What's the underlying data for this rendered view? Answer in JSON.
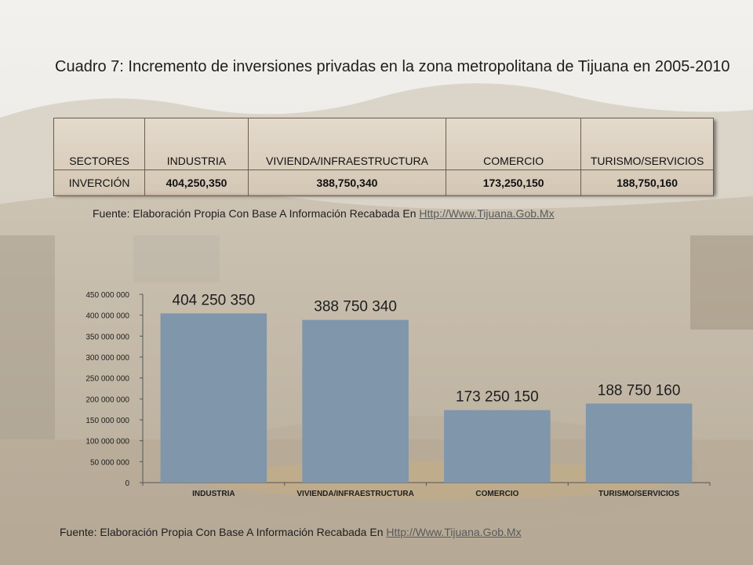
{
  "title": "Cuadro 7: Incremento de inversiones privadas en la zona metropolitana de Tijuana en 2005-2010",
  "table": {
    "headers": [
      "SECTORES",
      "INDUSTRIA",
      "VIVIENDA/INFRAESTRUCTURA",
      "COMERCIO",
      "TURISMO/SERVICIOS"
    ],
    "row_label": "INVERCIÓN",
    "values": [
      "404,250,350",
      "388,750,340",
      "173,250,150",
      "188,750,160"
    ]
  },
  "source": {
    "text": "Fuente: Elaboración Propia  Con Base A Información Recabada En ",
    "link": "Http://Www.Tijuana.Gob.Mx"
  },
  "chart_data": {
    "type": "bar",
    "categories": [
      "INDUSTRIA",
      "VIVIENDA/INFRAESTRUCTURA",
      "COMERCIO",
      "TURISMO/SERVICIOS"
    ],
    "values": [
      404250350,
      388750340,
      173250150,
      188750160
    ],
    "data_labels": [
      "404 250 350",
      "388 750 340",
      "173 250 150",
      "188 750 160"
    ],
    "title": "",
    "xlabel": "",
    "ylabel": "",
    "ylim": [
      0,
      450000000
    ],
    "yticks": [
      0,
      50000000,
      100000000,
      150000000,
      200000000,
      250000000,
      300000000,
      350000000,
      400000000,
      450000000
    ],
    "ytick_labels": [
      "0",
      "50 000 000",
      "100 000 000",
      "150 000 000",
      "200 000 000",
      "250 000 000",
      "300 000 000",
      "350 000 000",
      "400 000 000",
      "450 000 000"
    ],
    "grid": false,
    "legend": "none",
    "bar_color": "#7f96ab"
  }
}
